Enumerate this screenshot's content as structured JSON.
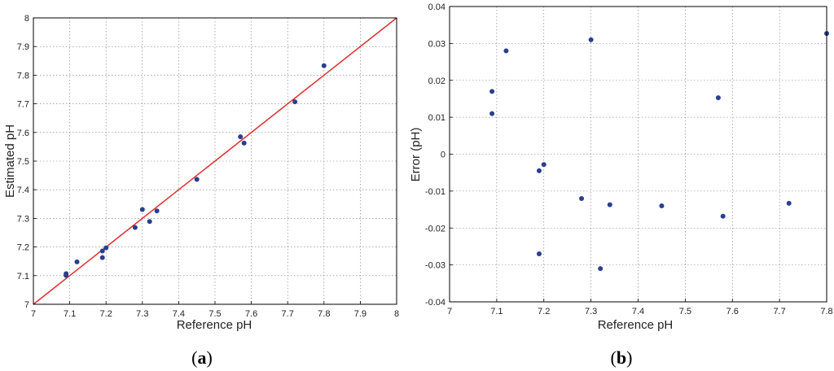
{
  "colors": {
    "points": "#2a3f8f",
    "fit_line": "#e03030",
    "grid": "#7a7a7a",
    "axis": "#000000"
  },
  "chart_data": [
    {
      "type": "scatter",
      "panel_open": "(",
      "panel_letter": "a",
      "panel_close": ")",
      "xlabel": "Reference pH",
      "ylabel": "Estimated pH",
      "xlim": [
        7,
        8
      ],
      "ylim": [
        7,
        8
      ],
      "grid": true,
      "xticks": [
        "7",
        "7.1",
        "7.2",
        "7.3",
        "7.4",
        "7.5",
        "7.6",
        "7.7",
        "7.8",
        "7.9",
        "8"
      ],
      "yticks": [
        "7",
        "7.1",
        "7.2",
        "7.3",
        "7.4",
        "7.5",
        "7.6",
        "7.7",
        "7.8",
        "7.9",
        "8"
      ],
      "line": {
        "x": [
          7,
          8
        ],
        "y": [
          7,
          8
        ]
      },
      "points": [
        {
          "x": 7.09,
          "y": 7.107
        },
        {
          "x": 7.09,
          "y": 7.101
        },
        {
          "x": 7.12,
          "y": 7.148
        },
        {
          "x": 7.19,
          "y": 7.186
        },
        {
          "x": 7.19,
          "y": 7.163
        },
        {
          "x": 7.2,
          "y": 7.197
        },
        {
          "x": 7.28,
          "y": 7.268
        },
        {
          "x": 7.3,
          "y": 7.331
        },
        {
          "x": 7.32,
          "y": 7.289
        },
        {
          "x": 7.34,
          "y": 7.326
        },
        {
          "x": 7.45,
          "y": 7.436
        },
        {
          "x": 7.57,
          "y": 7.585
        },
        {
          "x": 7.58,
          "y": 7.563
        },
        {
          "x": 7.72,
          "y": 7.707
        },
        {
          "x": 7.8,
          "y": 7.833
        }
      ]
    },
    {
      "type": "scatter",
      "panel_open": "(",
      "panel_letter": "b",
      "panel_close": ")",
      "xlabel": "Reference pH",
      "ylabel": "Error (pH)",
      "xlim": [
        7,
        7.8
      ],
      "ylim": [
        -0.04,
        0.04
      ],
      "grid": true,
      "xticks": [
        "7",
        "7.1",
        "7.2",
        "7.3",
        "7.4",
        "7.5",
        "7.6",
        "7.7",
        "7.8"
      ],
      "yticks": [
        "-0.04",
        "-0.03",
        "-0.02",
        "-0.01",
        "0",
        "0.01",
        "0.02",
        "0.03",
        "0.04"
      ],
      "points": [
        {
          "x": 7.09,
          "y": 0.017
        },
        {
          "x": 7.09,
          "y": 0.011
        },
        {
          "x": 7.12,
          "y": 0.028
        },
        {
          "x": 7.19,
          "y": -0.0045
        },
        {
          "x": 7.19,
          "y": -0.027
        },
        {
          "x": 7.2,
          "y": -0.0028
        },
        {
          "x": 7.28,
          "y": -0.012
        },
        {
          "x": 7.3,
          "y": 0.031
        },
        {
          "x": 7.32,
          "y": -0.031
        },
        {
          "x": 7.34,
          "y": -0.0137
        },
        {
          "x": 7.45,
          "y": -0.014
        },
        {
          "x": 7.57,
          "y": 0.0153
        },
        {
          "x": 7.58,
          "y": -0.0168
        },
        {
          "x": 7.72,
          "y": -0.0133
        },
        {
          "x": 7.8,
          "y": 0.0327
        }
      ]
    }
  ]
}
